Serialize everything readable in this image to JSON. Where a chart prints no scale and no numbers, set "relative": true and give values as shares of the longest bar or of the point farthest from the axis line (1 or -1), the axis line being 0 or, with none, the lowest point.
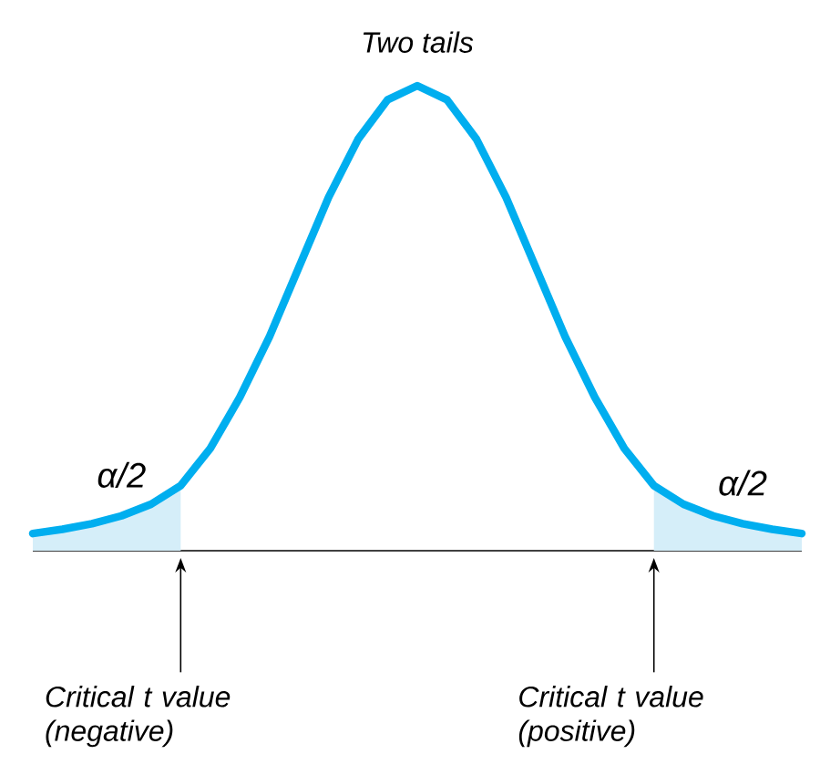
{
  "chart_data": {
    "type": "line",
    "title": "Two tails",
    "relative": true,
    "marker": "none",
    "categories": [
      null,
      null,
      null,
      null,
      null,
      null,
      null,
      null,
      null,
      null,
      null,
      null,
      null,
      null,
      null,
      null,
      null,
      null,
      null,
      null,
      null,
      null,
      null,
      null,
      null,
      null,
      null
    ],
    "series": [
      {
        "type": "area",
        "color": "#d5eef9",
        "values": [
          0.037,
          0.046,
          0.058,
          0.075,
          0.1,
          0.14,
          null,
          null,
          null,
          null,
          null,
          null,
          null,
          null,
          null,
          null,
          null,
          null,
          null,
          null,
          null,
          null,
          null,
          null,
          null,
          null,
          null
        ]
      },
      {
        "type": "area",
        "color": "#d5eef9",
        "values": [
          null,
          null,
          null,
          null,
          null,
          null,
          null,
          null,
          null,
          null,
          null,
          null,
          null,
          null,
          null,
          null,
          null,
          null,
          null,
          null,
          null,
          0.14,
          0.1,
          0.075,
          0.058,
          0.046,
          0.037
        ]
      },
      {
        "color": "#00aeef",
        "values": [
          0.037,
          0.046,
          0.058,
          0.075,
          0.1,
          0.14,
          0.22,
          0.33,
          0.46,
          0.61,
          0.76,
          0.885,
          0.97,
          1,
          0.97,
          0.885,
          0.76,
          0.61,
          0.46,
          0.33,
          0.22,
          0.14,
          0.1,
          0.075,
          0.058,
          0.046,
          0.037
        ]
      }
    ],
    "annotations": [
      "α/2",
      "α/2",
      "Critical t value (negative)",
      "Critical t value (positive)"
    ]
  }
}
